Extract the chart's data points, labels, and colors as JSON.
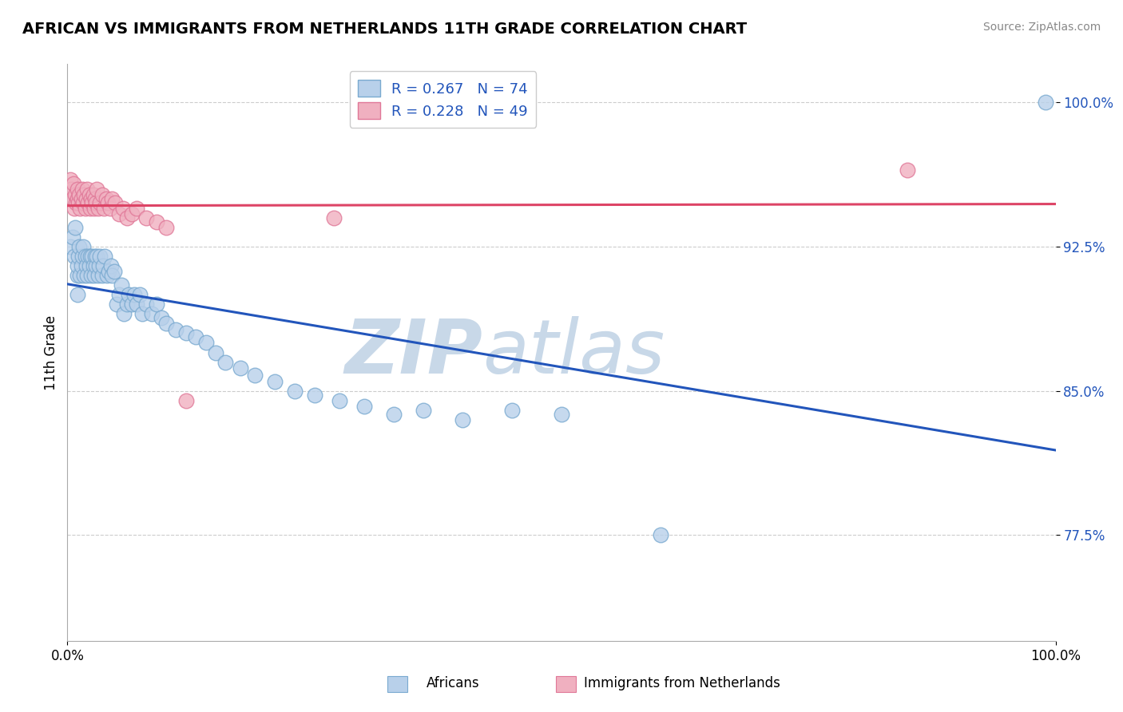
{
  "title": "AFRICAN VS IMMIGRANTS FROM NETHERLANDS 11TH GRADE CORRELATION CHART",
  "source": "Source: ZipAtlas.com",
  "ylabel": "11th Grade",
  "legend_blue_label": "Africans",
  "legend_pink_label": "Immigrants from Netherlands",
  "blue_R": 0.267,
  "blue_N": 74,
  "pink_R": 0.228,
  "pink_N": 49,
  "blue_color": "#b8d0ea",
  "blue_edge": "#7aaad0",
  "pink_color": "#f0b0c0",
  "pink_edge": "#e07898",
  "blue_line_color": "#2255bb",
  "pink_line_color": "#dd4466",
  "grid_color": "#cccccc",
  "watermark_zip_color": "#c8d8e8",
  "watermark_atlas_color": "#c8d8e8",
  "blue_scatter_x": [
    0.003,
    0.005,
    0.007,
    0.008,
    0.01,
    0.01,
    0.01,
    0.011,
    0.012,
    0.013,
    0.014,
    0.015,
    0.016,
    0.017,
    0.018,
    0.019,
    0.02,
    0.021,
    0.022,
    0.023,
    0.024,
    0.025,
    0.026,
    0.027,
    0.028,
    0.029,
    0.03,
    0.031,
    0.032,
    0.033,
    0.035,
    0.036,
    0.038,
    0.04,
    0.042,
    0.044,
    0.045,
    0.047,
    0.05,
    0.052,
    0.055,
    0.057,
    0.06,
    0.062,
    0.065,
    0.068,
    0.07,
    0.073,
    0.076,
    0.08,
    0.085,
    0.09,
    0.095,
    0.1,
    0.11,
    0.12,
    0.13,
    0.14,
    0.15,
    0.16,
    0.175,
    0.19,
    0.21,
    0.23,
    0.25,
    0.275,
    0.3,
    0.33,
    0.36,
    0.4,
    0.45,
    0.5,
    0.6,
    0.99
  ],
  "blue_scatter_y": [
    0.925,
    0.93,
    0.92,
    0.935,
    0.9,
    0.91,
    0.915,
    0.92,
    0.925,
    0.91,
    0.915,
    0.92,
    0.925,
    0.91,
    0.92,
    0.915,
    0.91,
    0.92,
    0.915,
    0.92,
    0.91,
    0.92,
    0.915,
    0.91,
    0.92,
    0.915,
    0.92,
    0.91,
    0.915,
    0.92,
    0.91,
    0.915,
    0.92,
    0.91,
    0.912,
    0.915,
    0.91,
    0.912,
    0.895,
    0.9,
    0.905,
    0.89,
    0.895,
    0.9,
    0.895,
    0.9,
    0.895,
    0.9,
    0.89,
    0.895,
    0.89,
    0.895,
    0.888,
    0.885,
    0.882,
    0.88,
    0.878,
    0.875,
    0.87,
    0.865,
    0.862,
    0.858,
    0.855,
    0.85,
    0.848,
    0.845,
    0.842,
    0.838,
    0.84,
    0.835,
    0.84,
    0.838,
    0.775,
    1.0
  ],
  "pink_scatter_x": [
    0.003,
    0.004,
    0.005,
    0.006,
    0.007,
    0.008,
    0.009,
    0.01,
    0.01,
    0.011,
    0.012,
    0.013,
    0.014,
    0.015,
    0.016,
    0.017,
    0.018,
    0.019,
    0.02,
    0.021,
    0.022,
    0.023,
    0.024,
    0.025,
    0.026,
    0.027,
    0.028,
    0.029,
    0.03,
    0.031,
    0.033,
    0.035,
    0.037,
    0.039,
    0.041,
    0.043,
    0.045,
    0.048,
    0.052,
    0.056,
    0.06,
    0.065,
    0.07,
    0.08,
    0.09,
    0.1,
    0.12,
    0.27,
    0.85
  ],
  "pink_scatter_y": [
    0.96,
    0.955,
    0.95,
    0.958,
    0.945,
    0.952,
    0.948,
    0.955,
    0.95,
    0.948,
    0.952,
    0.945,
    0.95,
    0.955,
    0.948,
    0.952,
    0.945,
    0.95,
    0.955,
    0.948,
    0.952,
    0.945,
    0.95,
    0.948,
    0.952,
    0.945,
    0.95,
    0.948,
    0.955,
    0.945,
    0.948,
    0.952,
    0.945,
    0.95,
    0.948,
    0.945,
    0.95,
    0.948,
    0.942,
    0.945,
    0.94,
    0.942,
    0.945,
    0.94,
    0.938,
    0.935,
    0.845,
    0.94,
    0.965
  ],
  "xlim": [
    0.0,
    1.0
  ],
  "ylim": [
    0.72,
    1.02
  ],
  "ytick_values": [
    0.775,
    0.85,
    0.925,
    1.0
  ],
  "ytick_labels": [
    "77.5%",
    "85.0%",
    "92.5%",
    "100.0%"
  ]
}
